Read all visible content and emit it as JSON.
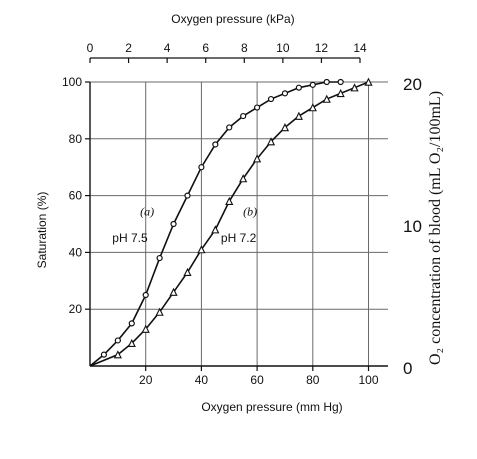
{
  "chart_data": {
    "type": "line",
    "title": "",
    "top_axis": {
      "label": "Oxygen pressure (kPa)",
      "ticks": [
        0,
        2,
        4,
        6,
        8,
        10,
        12,
        14
      ],
      "range": [
        0,
        14
      ]
    },
    "x_axis": {
      "label": "Oxygen pressure (mm Hg)",
      "ticks": [
        20,
        40,
        60,
        80,
        100
      ],
      "range": [
        0,
        107
      ]
    },
    "y_axis": {
      "label": "Saturation (%)",
      "ticks": [
        20,
        40,
        60,
        80,
        100
      ],
      "range": [
        0,
        100
      ]
    },
    "right_axis": {
      "label": "O₂ concentration of blood (mL O₂/100mL)",
      "ticks": [
        0,
        10,
        20
      ],
      "range": [
        0,
        20
      ]
    },
    "grid": true,
    "series": [
      {
        "name": "(a) pH 7.5",
        "marker": "circle",
        "x": [
          0,
          5,
          10,
          15,
          20,
          25,
          30,
          35,
          40,
          45,
          50,
          55,
          60,
          65,
          70,
          75,
          80,
          85,
          90
        ],
        "y": [
          0,
          4,
          9,
          15,
          25,
          38,
          50,
          60,
          70,
          78,
          84,
          88,
          91,
          94,
          96,
          98,
          99,
          100,
          100
        ]
      },
      {
        "name": "(b) pH 7.2",
        "marker": "triangle",
        "x": [
          0,
          10,
          15,
          20,
          25,
          30,
          35,
          40,
          45,
          50,
          55,
          60,
          65,
          70,
          75,
          80,
          85,
          90,
          95,
          100
        ],
        "y": [
          0,
          4,
          8,
          13,
          19,
          26,
          33,
          41,
          48,
          58,
          66,
          73,
          79,
          84,
          88,
          91,
          94,
          96,
          98,
          100
        ]
      }
    ],
    "annotations": [
      {
        "text": "(a)",
        "x": 18,
        "y": 53
      },
      {
        "text": "pH 7.5",
        "x": 8,
        "y": 45
      },
      {
        "text": "(b)",
        "x": 55,
        "y": 53
      },
      {
        "text": "pH 7.2",
        "x": 47,
        "y": 45
      }
    ]
  }
}
